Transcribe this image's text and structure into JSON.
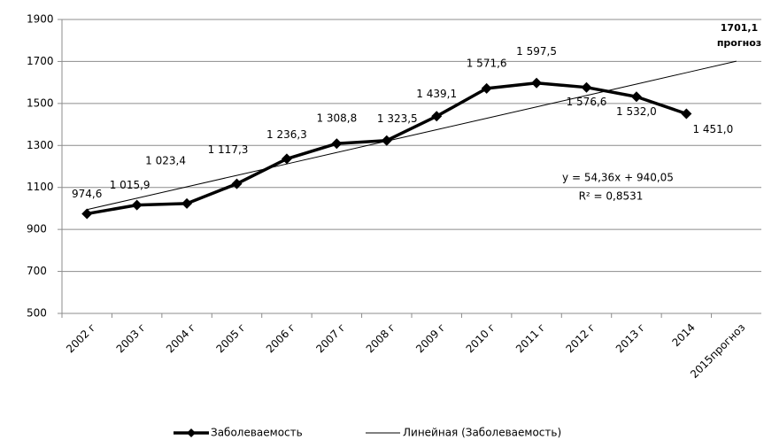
{
  "chart_data": {
    "type": "line",
    "categories": [
      "2002 г",
      "2003 г",
      "2004 г",
      "2005 г",
      "2006 г",
      "2007 г",
      "2008 г",
      "2009 г",
      "2010 г",
      "2011 г",
      "2012 г",
      "2013 г",
      "2014",
      "2015прогноз"
    ],
    "series": [
      {
        "name": "Заболеваемость",
        "color": "#000000",
        "values": [
          974.6,
          1015.9,
          1023.4,
          1117.3,
          1236.3,
          1308.8,
          1323.5,
          1439.1,
          1571.6,
          1597.5,
          1576.6,
          1532.0,
          1451.0,
          null
        ],
        "value_labels": [
          "974,6",
          "1 015,9",
          "1 023,4",
          "1 117,3",
          "1 236,3",
          "1 308,8",
          "1 323,5",
          "1 439,1",
          "1 571,6",
          "1 597,5",
          "1 576,6",
          "1 532,0",
          "1 451,0",
          null
        ]
      },
      {
        "name": "Линейная (Заболеваемость)",
        "color": "#000000",
        "values": [
          994.41,
          1048.77,
          1103.13,
          1157.49,
          1211.85,
          1266.21,
          1320.57,
          1374.93,
          1429.29,
          1483.65,
          1538.01,
          1592.37,
          1646.73,
          1701.09
        ]
      }
    ],
    "annotations": [
      "1701,1",
      "прогноз",
      "y = 54,36x + 940,05",
      "R² = 0,8531"
    ],
    "ylim": [
      500,
      1900
    ],
    "yticks": [
      500,
      700,
      900,
      1100,
      1300,
      1500,
      1700,
      1900
    ],
    "grid": true
  }
}
